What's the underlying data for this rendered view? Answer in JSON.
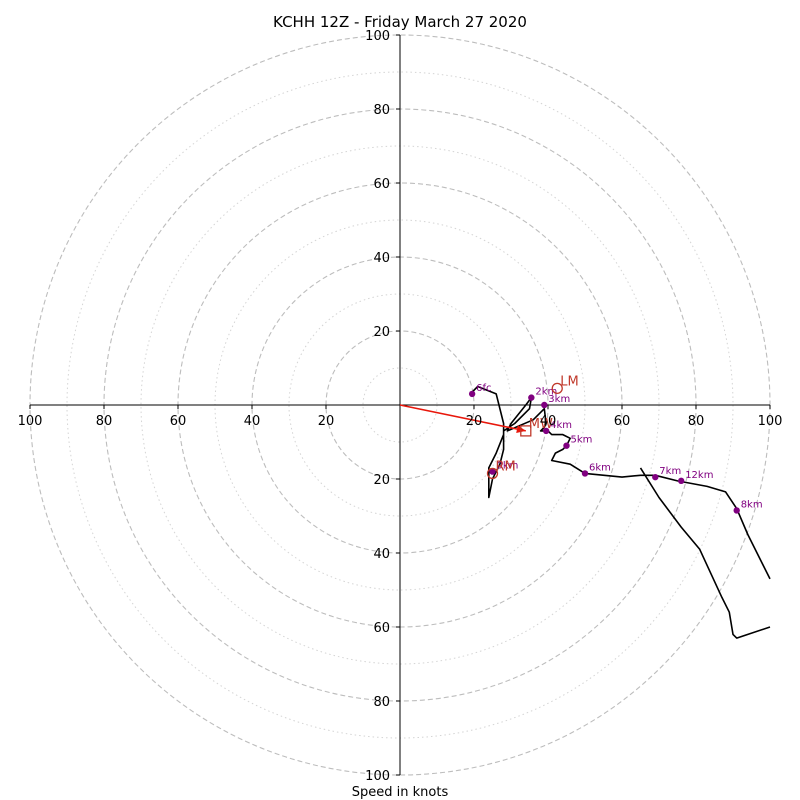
{
  "chart_data": {
    "type": "hodograph",
    "title": "KCHH 12Z - Friday March 27 2020",
    "xlabel": "Speed in knots",
    "xlim": [
      -100,
      100
    ],
    "ylim": [
      -100,
      100
    ],
    "major_rings": [
      20,
      40,
      60,
      80,
      100
    ],
    "minor_rings": [
      10,
      30,
      50,
      70,
      90
    ],
    "x_tick_labels": [
      "100",
      "80",
      "60",
      "40",
      "20",
      "20",
      "40",
      "60",
      "80",
      "100"
    ],
    "x_tick_values": [
      -100,
      -80,
      -60,
      -40,
      -20,
      20,
      40,
      60,
      80,
      100
    ],
    "y_tick_labels": [
      "100",
      "80",
      "60",
      "40",
      "20",
      "20",
      "40",
      "60",
      "80",
      "100"
    ],
    "y_tick_values": [
      100,
      80,
      60,
      40,
      20,
      -20,
      -40,
      -60,
      -80,
      -100
    ],
    "grid": true,
    "colors": {
      "profile": "#000000",
      "height_marker": "#800080",
      "motion": "#c0392b",
      "arrow": "#e8170b",
      "grid": "#bdbdbd"
    },
    "hodograph_line": [
      [
        19,
        3
      ],
      [
        21,
        5
      ],
      [
        26,
        3
      ],
      [
        28,
        -5
      ],
      [
        28,
        -12
      ],
      [
        27,
        -16
      ],
      [
        25,
        -20
      ],
      [
        24,
        -25
      ],
      [
        24,
        -20
      ],
      [
        24,
        -17
      ],
      [
        26,
        -13
      ],
      [
        28,
        -8
      ],
      [
        28,
        -7
      ],
      [
        31,
        -5
      ],
      [
        35,
        -1
      ],
      [
        35.5,
        2
      ],
      [
        34,
        0
      ],
      [
        30,
        -5
      ],
      [
        29,
        -7
      ],
      [
        36,
        -4
      ],
      [
        39,
        -1
      ],
      [
        39.5,
        -5
      ],
      [
        39,
        -6
      ],
      [
        38,
        -7
      ],
      [
        39,
        -7
      ],
      [
        40,
        -7
      ],
      [
        41,
        -8
      ],
      [
        44,
        -8
      ],
      [
        46,
        -9
      ],
      [
        45,
        -11
      ],
      [
        44,
        -12
      ],
      [
        42,
        -13
      ],
      [
        41,
        -15
      ],
      [
        46,
        -16
      ],
      [
        50,
        -18.5
      ],
      [
        60,
        -19.5
      ],
      [
        65,
        -19
      ],
      [
        69,
        -19
      ],
      [
        75,
        -20.5
      ],
      [
        83,
        -22
      ],
      [
        88,
        -23.5
      ],
      [
        91,
        -28
      ],
      [
        94,
        -35
      ],
      [
        100,
        -47
      ]
    ],
    "hodograph_line_2": [
      [
        65,
        -17
      ],
      [
        70,
        -25
      ],
      [
        76,
        -33
      ],
      [
        81,
        -39
      ],
      [
        87,
        -52
      ],
      [
        89,
        -56
      ],
      [
        90,
        -62
      ],
      [
        91,
        -63
      ],
      [
        100,
        -60
      ]
    ],
    "height_markers": [
      {
        "label": "0km",
        "u": 25,
        "v": -18
      },
      {
        "label": "2km",
        "u": 35.5,
        "v": 2
      },
      {
        "label": "3km",
        "u": 39,
        "v": 0
      },
      {
        "label": "4km",
        "u": 39.5,
        "v": -7
      },
      {
        "label": "5km",
        "u": 45,
        "v": -11
      },
      {
        "label": "6km",
        "u": 50,
        "v": -18.5
      },
      {
        "label": "7km",
        "u": 69,
        "v": -19.5
      },
      {
        "label": "8km",
        "u": 91,
        "v": -28.5
      },
      {
        "label": "12km",
        "u": 76,
        "v": -20.5
      },
      {
        "label": "6fc",
        "u": 19.5,
        "v": 3
      }
    ],
    "storm_motion": [
      {
        "label": "RM",
        "u": 25,
        "v": -18.5,
        "marker": "circle"
      },
      {
        "label": "LM",
        "u": 42.5,
        "v": 4.5,
        "marker": "circle"
      },
      {
        "label": "MW",
        "u": 34,
        "v": -7,
        "marker": "square"
      }
    ],
    "arrow": {
      "from": [
        0,
        0
      ],
      "to": [
        34,
        -7
      ]
    }
  }
}
